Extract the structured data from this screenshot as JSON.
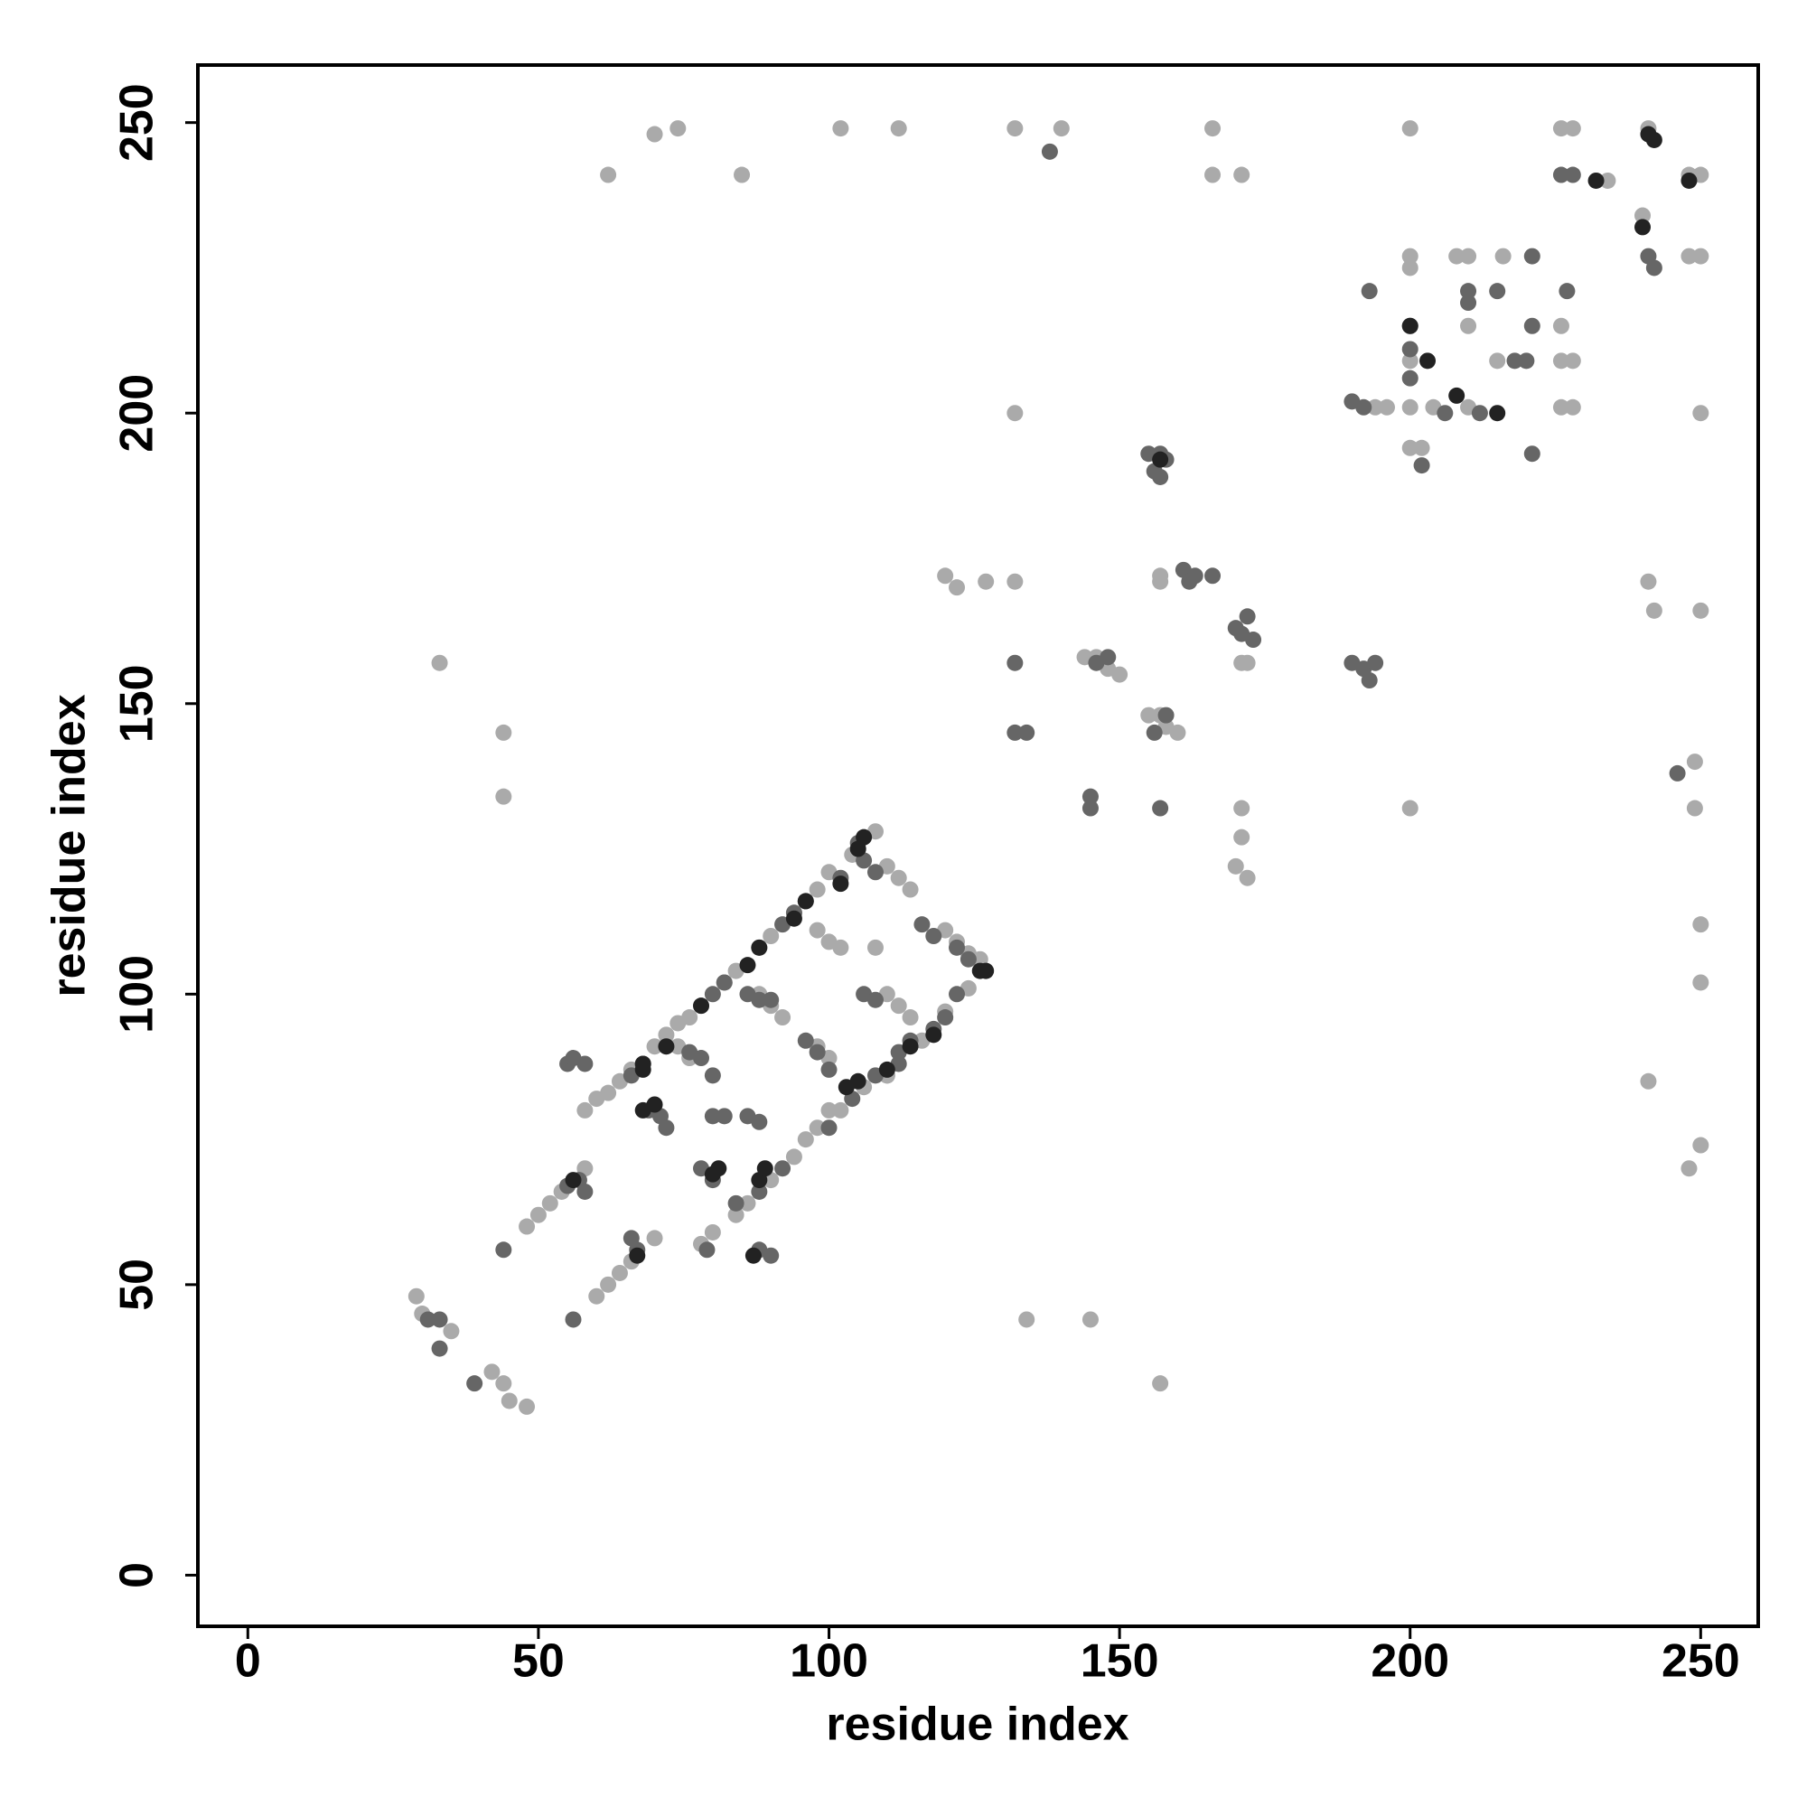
{
  "chart_data": {
    "type": "scatter",
    "x_label": "residue index",
    "y_label": "residue index",
    "xlim": [
      -8.6,
      259.9
    ],
    "ylim": [
      -8.8,
      259.9
    ],
    "xticks": [
      0,
      50,
      100,
      150,
      200,
      250
    ],
    "yticks": [
      0,
      50,
      100,
      150,
      200,
      250
    ],
    "series": [
      {
        "color": "#aaaaaa",
        "x": [
          62,
          70,
          74,
          85,
          102,
          112,
          132,
          140,
          166,
          166,
          171,
          200,
          226,
          228,
          241,
          250,
          248,
          234,
          240,
          248,
          250,
          200,
          200,
          208,
          210,
          216,
          210,
          226,
          226,
          228,
          200,
          200,
          194,
          196,
          204,
          210,
          226,
          228,
          200,
          202,
          215,
          250,
          132,
          120,
          122,
          127,
          132,
          157,
          157,
          171,
          172,
          144,
          146,
          148,
          150,
          155,
          157,
          158,
          160,
          200,
          171,
          171,
          170,
          172,
          241,
          242,
          250,
          249,
          249,
          250,
          250,
          241,
          250,
          248,
          33,
          44,
          44,
          134,
          145,
          157,
          29,
          30,
          35,
          42,
          45,
          48,
          44,
          58,
          60,
          62,
          64,
          66,
          70,
          72,
          74,
          76,
          78,
          82,
          84,
          88,
          90,
          94,
          98,
          100,
          104,
          108,
          60,
          62,
          64,
          66,
          78,
          80,
          84,
          86,
          90,
          94,
          96,
          98,
          102,
          106,
          110,
          116,
          120,
          124,
          126,
          48,
          50,
          52,
          54,
          58,
          70,
          110,
          112,
          114,
          120,
          122,
          124,
          98,
          100,
          102,
          108,
          110,
          112,
          114,
          98,
          100,
          110,
          100,
          88,
          90,
          92,
          74,
          76
        ],
        "values": [
          241,
          248,
          249,
          241,
          249,
          249,
          249,
          249,
          249,
          241,
          241,
          249,
          249,
          249,
          249,
          241,
          241,
          240,
          234,
          227,
          227,
          227,
          225,
          227,
          227,
          227,
          215,
          215,
          209,
          209,
          209,
          201,
          201,
          201,
          201,
          201,
          201,
          201,
          194,
          194,
          209,
          200,
          200,
          172,
          170,
          171,
          171,
          172,
          171,
          157,
          157,
          158,
          158,
          156,
          155,
          148,
          148,
          146,
          145,
          132,
          132,
          127,
          122,
          120,
          171,
          166,
          166,
          140,
          132,
          112,
          102,
          85,
          74,
          70,
          157,
          145,
          134,
          44,
          44,
          33,
          48,
          45,
          42,
          35,
          30,
          29,
          33,
          80,
          82,
          83,
          85,
          87,
          91,
          93,
          95,
          96,
          98,
          102,
          104,
          108,
          110,
          114,
          118,
          121,
          124,
          128,
          48,
          50,
          52,
          54,
          57,
          59,
          62,
          64,
          68,
          72,
          75,
          77,
          80,
          84,
          86,
          92,
          97,
          101,
          106,
          60,
          62,
          64,
          66,
          70,
          58,
          122,
          120,
          118,
          111,
          109,
          107,
          111,
          109,
          108,
          108,
          100,
          98,
          96,
          91,
          89,
          86,
          80,
          100,
          98,
          96,
          91,
          89
        ]
      },
      {
        "color": "#666666",
        "x": [
          138,
          226,
          228,
          241,
          242,
          246,
          193,
          200,
          200,
          210,
          210,
          215,
          221,
          227,
          221,
          218,
          220,
          221,
          190,
          192,
          206,
          212,
          202,
          200,
          155,
          157,
          158,
          156,
          157,
          161,
          163,
          162,
          166,
          170,
          172,
          173,
          171,
          190,
          192,
          193,
          194,
          146,
          148,
          132,
          132,
          134,
          145,
          145,
          157,
          156,
          158,
          44,
          56,
          31,
          33,
          39,
          33,
          55,
          56,
          58,
          55,
          57,
          58,
          66,
          67,
          69,
          71,
          72,
          76,
          78,
          80,
          78,
          80,
          79,
          80,
          82,
          86,
          88,
          88,
          90,
          86,
          88,
          90,
          96,
          98,
          100,
          106,
          108,
          105,
          106,
          108,
          116,
          118,
          122,
          124,
          112,
          114,
          118,
          120,
          122,
          92,
          94,
          96,
          102,
          66,
          68,
          80,
          82,
          84,
          88,
          92,
          100,
          104,
          108,
          112
        ],
        "values": [
          245,
          241,
          241,
          227,
          225,
          138,
          221,
          215,
          211,
          221,
          219,
          221,
          227,
          221,
          215,
          209,
          209,
          193,
          202,
          201,
          200,
          200,
          191,
          206,
          193,
          193,
          192,
          190,
          189,
          173,
          172,
          171,
          172,
          163,
          165,
          161,
          162,
          157,
          156,
          154,
          157,
          157,
          158,
          157,
          145,
          145,
          134,
          132,
          132,
          145,
          148,
          56,
          44,
          44,
          39,
          33,
          44,
          88,
          89,
          88,
          67,
          68,
          66,
          58,
          56,
          80,
          79,
          77,
          90,
          89,
          86,
          70,
          68,
          56,
          79,
          79,
          79,
          78,
          56,
          55,
          100,
          99,
          99,
          92,
          90,
          87,
          100,
          99,
          126,
          123,
          121,
          112,
          110,
          108,
          106,
          90,
          92,
          94,
          96,
          100,
          112,
          114,
          116,
          120,
          86,
          88,
          100,
          102,
          64,
          66,
          70,
          77,
          82,
          86,
          88
        ]
      },
      {
        "color": "#222222",
        "x": [
          232,
          240,
          241,
          242,
          248,
          208,
          215,
          203,
          200,
          157,
          68,
          68,
          88,
          89,
          81,
          87,
          67,
          106,
          105,
          110,
          114,
          118,
          126,
          127,
          94,
          96,
          102,
          86,
          88,
          78,
          72,
          80,
          103,
          105,
          56,
          68,
          70
        ],
        "values": [
          240,
          232,
          248,
          247,
          240,
          203,
          200,
          209,
          215,
          192,
          87,
          88,
          68,
          70,
          70,
          55,
          55,
          127,
          125,
          87,
          91,
          93,
          104,
          104,
          113,
          116,
          119,
          105,
          108,
          98,
          91,
          69,
          84,
          85,
          68,
          80,
          81
        ]
      }
    ]
  }
}
